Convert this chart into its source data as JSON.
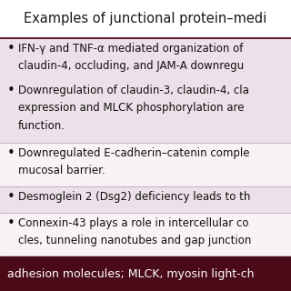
{
  "title": "Examples of junctional protein–medi",
  "title_fontsize": 10.5,
  "title_color": "#1a1a1a",
  "background_color": "#f5eef0",
  "header_bg_color": "#ffffff",
  "rows": [
    {
      "bg_color": "#ede0e8",
      "bullets": [
        {
          "lines": [
            "IFN-γ and TNF-α mediated organization of",
            "claudin-4, occluding, and JAM-A downregu"
          ]
        },
        {
          "lines": [
            "Downregulation of claudin-3, claudin-4, cla",
            "expression and MLCK phosphorylation are",
            "function."
          ]
        }
      ]
    },
    {
      "bg_color": "#f8f3f6",
      "bullets": [
        {
          "lines": [
            "Downregulated E-cadherin–catenin comple",
            "mucosal barrier."
          ]
        }
      ]
    },
    {
      "bg_color": "#ede0e8",
      "bullets": [
        {
          "lines": [
            "Desmoglein 2 (Dsg2) deficiency leads to th"
          ]
        }
      ]
    },
    {
      "bg_color": "#f8f3f6",
      "bullets": [
        {
          "lines": [
            "Connexin-43 plays a role in intercellular co",
            "cles, tunneling nanotubes and gap junction"
          ]
        }
      ]
    }
  ],
  "footer_bg_color": "#4a0a18",
  "footer_text": "adhesion molecules; MLCK, myosin light-ch",
  "footer_text_color": "#ffffff",
  "footer_fontsize": 9.0,
  "bullet_fontsize": 8.5,
  "bullet_color": "#111111",
  "separator_color": "#c8b8c4",
  "title_line_color": "#6b2030"
}
